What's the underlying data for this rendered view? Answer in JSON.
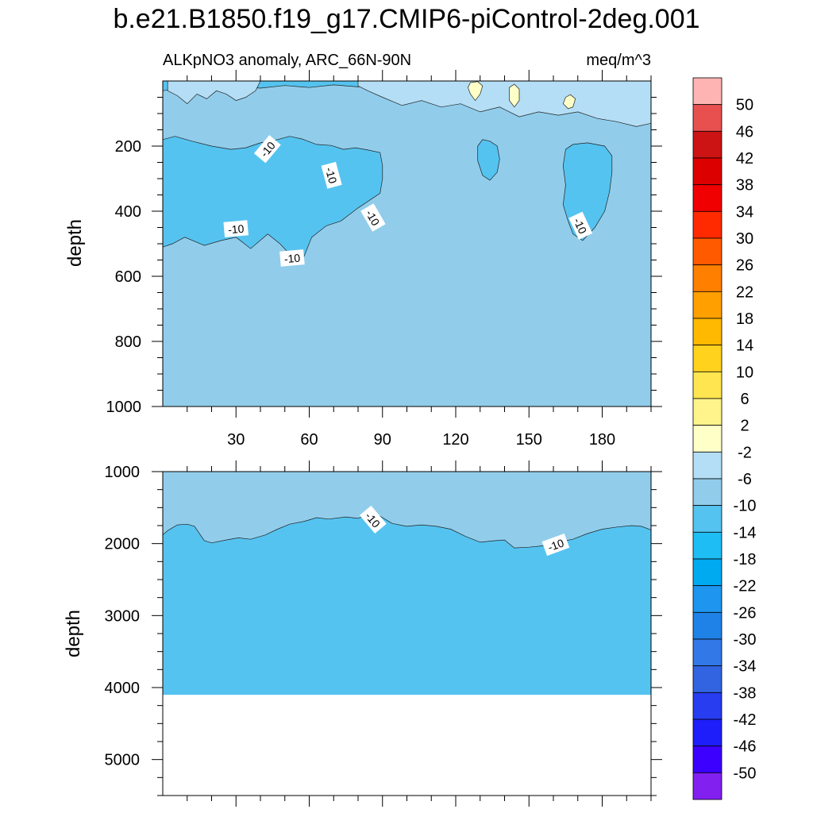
{
  "figure": {
    "title": "b.e21.B1850.f19_g17.CMIP6-piControl-2deg.001"
  },
  "chart_data": [
    {
      "type": "heatmap",
      "panel": "upper",
      "subtitle_left": "ALKpNO3 anomaly, ARC_66N-90N",
      "subtitle_right": "meq/m^3",
      "ylabel": "depth",
      "xlabel": "",
      "xlim": [
        0,
        200
      ],
      "ylim": [
        0,
        1000
      ],
      "y_reversed": true,
      "x_ticks": [
        "30",
        "60",
        "90",
        "120",
        "150",
        "180"
      ],
      "x_tick_values": [
        30,
        60,
        90,
        120,
        150,
        180
      ],
      "y_ticks": [
        "200",
        "400",
        "600",
        "800",
        "1000"
      ],
      "y_tick_values": [
        200,
        400,
        600,
        800,
        1000
      ],
      "background_level": "-10 to -6",
      "contour_labels": [
        {
          "text": "-10",
          "x": 43,
          "y": 210,
          "angle": -50
        },
        {
          "text": "-10",
          "x": 69,
          "y": 290,
          "angle": 75
        },
        {
          "text": "-10",
          "x": 86,
          "y": 420,
          "angle": 60
        },
        {
          "text": "-10",
          "x": 30,
          "y": 455,
          "angle": -5
        },
        {
          "text": "-10",
          "x": 53,
          "y": 545,
          "angle": -5
        },
        {
          "text": "-10",
          "x": 171,
          "y": 445,
          "angle": 65
        }
      ],
      "regions": [
        {
          "level": "-14 to -10",
          "name": "west mid-depth patch",
          "outline": [
            [
              0,
              510
            ],
            [
              0,
              180
            ],
            [
              5,
              170
            ],
            [
              12,
              185
            ],
            [
              20,
              200
            ],
            [
              28,
              210
            ],
            [
              34,
              205
            ],
            [
              40,
              190
            ],
            [
              47,
              180
            ],
            [
              52,
              170
            ],
            [
              57,
              178
            ],
            [
              63,
              195
            ],
            [
              69,
              198
            ],
            [
              74,
              210
            ],
            [
              79,
              205
            ],
            [
              84,
              212
            ],
            [
              89,
              220
            ],
            [
              90,
              260
            ],
            [
              90,
              300
            ],
            [
              89,
              345
            ],
            [
              84,
              370
            ],
            [
              80,
              390
            ],
            [
              73,
              430
            ],
            [
              67,
              445
            ],
            [
              61,
              480
            ],
            [
              57,
              555
            ],
            [
              53,
              540
            ],
            [
              48,
              500
            ],
            [
              43,
              470
            ],
            [
              36,
              515
            ],
            [
              30,
              480
            ],
            [
              24,
              490
            ],
            [
              17,
              505
            ],
            [
              9,
              480
            ],
            [
              4,
              500
            ]
          ]
        },
        {
          "level": "-14 to -10",
          "name": "patch near 130E",
          "outline": [
            [
              129,
              200
            ],
            [
              131,
              180
            ],
            [
              134,
              185
            ],
            [
              137,
              200
            ],
            [
              138,
              240
            ],
            [
              137,
              280
            ],
            [
              134,
              305
            ],
            [
              131,
              290
            ],
            [
              129,
              245
            ]
          ]
        },
        {
          "level": "-14 to -10",
          "name": "patch near 175E",
          "outline": [
            [
              165,
              210
            ],
            [
              168,
              195
            ],
            [
              174,
              190
            ],
            [
              181,
              200
            ],
            [
              184,
              230
            ],
            [
              184,
              280
            ],
            [
              183,
              340
            ],
            [
              181,
              400
            ],
            [
              177,
              450
            ],
            [
              172,
              490
            ],
            [
              168,
              470
            ],
            [
              166,
              430
            ],
            [
              164,
              380
            ],
            [
              165,
              320
            ],
            [
              164,
              260
            ]
          ]
        },
        {
          "level": "-14 to -10",
          "name": "near-surface filaments",
          "outline": [
            [
              0,
              0
            ],
            [
              200,
              0
            ],
            [
              200,
              20
            ],
            [
              190,
              25
            ],
            [
              180,
              20
            ],
            [
              170,
              15
            ],
            [
              160,
              18
            ],
            [
              150,
              12
            ],
            [
              140,
              20
            ],
            [
              130,
              10
            ],
            [
              120,
              14
            ],
            [
              110,
              8
            ],
            [
              100,
              15
            ],
            [
              90,
              10
            ],
            [
              80,
              18
            ],
            [
              70,
              12
            ],
            [
              60,
              20
            ],
            [
              50,
              14
            ],
            [
              40,
              22
            ],
            [
              30,
              16
            ],
            [
              20,
              24
            ],
            [
              10,
              18
            ],
            [
              0,
              30
            ]
          ]
        },
        {
          "level": "-6 to -2",
          "name": "surface band east",
          "outline": [
            [
              80,
              0
            ],
            [
              200,
              0
            ],
            [
              200,
              130
            ],
            [
              194,
              140
            ],
            [
              186,
              125
            ],
            [
              178,
              115
            ],
            [
              170,
              95
            ],
            [
              162,
              105
            ],
            [
              154,
              95
            ],
            [
              146,
              110
            ],
            [
              138,
              80
            ],
            [
              130,
              95
            ],
            [
              122,
              70
            ],
            [
              114,
              80
            ],
            [
              106,
              60
            ],
            [
              98,
              75
            ],
            [
              90,
              50
            ],
            [
              84,
              30
            ],
            [
              80,
              15
            ]
          ]
        },
        {
          "level": "-6 to -2",
          "name": "surface band west",
          "outline": [
            [
              2,
              0
            ],
            [
              40,
              0
            ],
            [
              38,
              30
            ],
            [
              34,
              50
            ],
            [
              30,
              60
            ],
            [
              26,
              40
            ],
            [
              22,
              30
            ],
            [
              18,
              55
            ],
            [
              14,
              40
            ],
            [
              10,
              70
            ],
            [
              6,
              45
            ],
            [
              2,
              30
            ]
          ]
        },
        {
          "level": "-2 to 2",
          "name": "positive patch A",
          "outline": [
            [
              126,
              5
            ],
            [
              129,
              2
            ],
            [
              131,
              15
            ],
            [
              130,
              40
            ],
            [
              128,
              60
            ],
            [
              126,
              40
            ],
            [
              125,
              20
            ]
          ]
        },
        {
          "level": "-2 to 2",
          "name": "positive patch B",
          "outline": [
            [
              142,
              20
            ],
            [
              144,
              10
            ],
            [
              146,
              25
            ],
            [
              146,
              60
            ],
            [
              144,
              80
            ],
            [
              142,
              60
            ]
          ]
        },
        {
          "level": "-2 to 2",
          "name": "positive patch C",
          "outline": [
            [
              165,
              50
            ],
            [
              167,
              42
            ],
            [
              169,
              55
            ],
            [
              168,
              80
            ],
            [
              166,
              85
            ],
            [
              164,
              70
            ]
          ]
        }
      ]
    },
    {
      "type": "heatmap",
      "panel": "lower",
      "ylabel": "depth",
      "xlabel": "",
      "xlim": [
        0,
        200
      ],
      "ylim": [
        1000,
        5500
      ],
      "y_reversed": true,
      "y_ticks": [
        "1000",
        "2000",
        "3000",
        "4000",
        "5000"
      ],
      "y_tick_values": [
        1000,
        2000,
        3000,
        4000,
        5000
      ],
      "no_data_below_depth": 4100,
      "background_level": "-10 to -6",
      "contour_labels": [
        {
          "text": "-10",
          "x": 86,
          "y": 1670,
          "angle": 50
        },
        {
          "text": "-10",
          "x": 161,
          "y": 2020,
          "angle": -20
        }
      ],
      "boundary_10": [
        [
          0,
          1880
        ],
        [
          2,
          1820
        ],
        [
          6,
          1740
        ],
        [
          10,
          1730
        ],
        [
          13,
          1760
        ],
        [
          17,
          1960
        ],
        [
          20,
          1990
        ],
        [
          26,
          1950
        ],
        [
          31,
          1920
        ],
        [
          36,
          1940
        ],
        [
          42,
          1880
        ],
        [
          47,
          1800
        ],
        [
          52,
          1730
        ],
        [
          58,
          1690
        ],
        [
          63,
          1640
        ],
        [
          68,
          1660
        ],
        [
          75,
          1630
        ],
        [
          80,
          1650
        ],
        [
          85,
          1580
        ],
        [
          89,
          1620
        ],
        [
          94,
          1720
        ],
        [
          100,
          1760
        ],
        [
          106,
          1740
        ],
        [
          112,
          1760
        ],
        [
          118,
          1800
        ],
        [
          124,
          1900
        ],
        [
          130,
          1980
        ],
        [
          136,
          1960
        ],
        [
          140,
          1950
        ],
        [
          144,
          2060
        ],
        [
          150,
          2050
        ],
        [
          156,
          2030
        ],
        [
          162,
          1980
        ],
        [
          168,
          1940
        ],
        [
          174,
          1860
        ],
        [
          180,
          1800
        ],
        [
          186,
          1770
        ],
        [
          192,
          1750
        ],
        [
          196,
          1760
        ],
        [
          200,
          1810
        ]
      ]
    }
  ],
  "colorbar": {
    "labels": [
      "50",
      "46",
      "42",
      "38",
      "34",
      "30",
      "26",
      "22",
      "18",
      "14",
      "10",
      "6",
      "2",
      "-2",
      "-6",
      "-10",
      "-14",
      "-18",
      "-22",
      "-26",
      "-30",
      "-34",
      "-38",
      "-42",
      "-46",
      "-50"
    ],
    "colors": [
      "#ffb4b4",
      "#e85050",
      "#cc1414",
      "#dc0000",
      "#f00000",
      "#ff2a00",
      "#ff5a00",
      "#ff7f00",
      "#ff9f00",
      "#ffb900",
      "#ffd21e",
      "#ffe650",
      "#fff48c",
      "#ffffc8",
      "#b4def5",
      "#91cdeb",
      "#55c3f0",
      "#1ebef5",
      "#00aaf0",
      "#1e96f0",
      "#1e82e6",
      "#3278e6",
      "#3264e1",
      "#283cf0",
      "#1e1efa",
      "#3c00ff",
      "#8220f0"
    ]
  }
}
